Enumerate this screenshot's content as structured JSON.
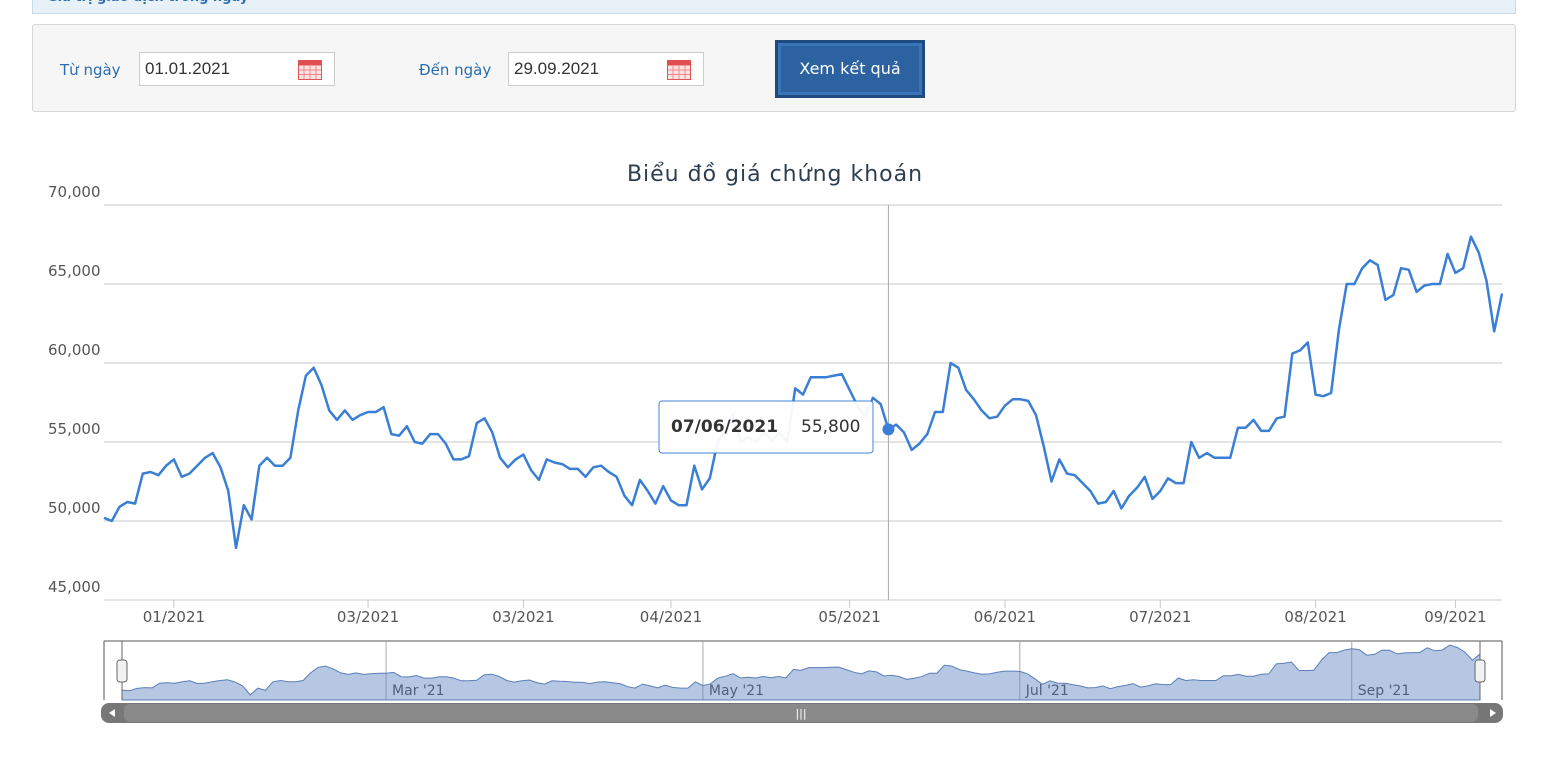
{
  "header": {
    "title": "Giá trị giao dịch trong ngày"
  },
  "form": {
    "from_label": "Từ ngày",
    "from_value": "01.01.2021",
    "to_label": "Đến ngày",
    "to_value": "29.09.2021",
    "button": "Xem kết quả"
  },
  "chart_data": {
    "type": "line",
    "title": "Biểu đồ giá chứng khoán",
    "color": "#3a7fd5",
    "values": [
      50200,
      50000,
      50900,
      51200,
      51100,
      53000,
      53100,
      52900,
      53500,
      53900,
      52800,
      53000,
      53500,
      54000,
      54300,
      53400,
      51900,
      48300,
      51000,
      50100,
      53500,
      54000,
      53500,
      53500,
      54000,
      57000,
      59200,
      59700,
      58600,
      57000,
      56400,
      57000,
      56400,
      56700,
      56900,
      56900,
      57200,
      55500,
      55400,
      56000,
      55000,
      54900,
      55500,
      55500,
      54900,
      53900,
      53900,
      54100,
      56200,
      56500,
      55600,
      54000,
      53400,
      53900,
      54200,
      53200,
      52600,
      53900,
      53700,
      53600,
      53300,
      53300,
      52800,
      53400,
      53500,
      53100,
      52800,
      51600,
      51000,
      52600,
      51900,
      51100,
      52200,
      51300,
      51000,
      51000,
      53500,
      52000,
      52700,
      55000,
      55700,
      56700,
      55000,
      55300,
      55000,
      55600,
      55100,
      55600,
      55000,
      58400,
      58000,
      59100,
      59100,
      59100,
      59200,
      59300,
      58300,
      57300,
      56600,
      57800,
      57400,
      55800,
      56100,
      55600,
      54500,
      54900,
      55500,
      56900,
      56900,
      60000,
      59700,
      58300,
      57700,
      57000,
      56500,
      56600,
      57300,
      57700,
      57700,
      57600,
      56700,
      54700,
      52500,
      53900,
      53000,
      52900,
      52400,
      51900,
      51100,
      51200,
      51900,
      50800,
      51600,
      52100,
      52800,
      51400,
      51900,
      52700,
      52400,
      52400,
      55000,
      54000,
      54300,
      54000,
      54000,
      54000,
      55900,
      55900,
      56400,
      55700,
      55700,
      56500,
      56600,
      60600,
      60800,
      61300,
      58000,
      57900,
      58100,
      62100,
      65000,
      65000,
      66000,
      66500,
      66200,
      64000,
      64300,
      66000,
      65900,
      64500,
      64900,
      65000,
      65000,
      66900,
      65700,
      66000,
      68000,
      67000,
      65200,
      62000,
      64400
    ],
    "xlim": [
      0,
      180
    ],
    "xticks": [
      {
        "value": 9,
        "label": "01/2021"
      },
      {
        "value": 34,
        "label": "03/2021"
      },
      {
        "value": 54,
        "label": "03/2021"
      },
      {
        "value": 73,
        "label": "04/2021"
      },
      {
        "value": 96,
        "label": "05/2021"
      },
      {
        "value": 116,
        "label": "06/2021"
      },
      {
        "value": 136,
        "label": "07/2021"
      },
      {
        "value": 156,
        "label": "08/2021"
      },
      {
        "value": 174,
        "label": "09/2021"
      }
    ],
    "ylim": [
      45000,
      70000
    ],
    "yticks": [
      {
        "value": 45000,
        "label": "45,000"
      },
      {
        "value": 50000,
        "label": "50,000"
      },
      {
        "value": 55000,
        "label": "55,000"
      },
      {
        "value": 60000,
        "label": "60,000"
      },
      {
        "value": 65000,
        "label": "65,000"
      },
      {
        "value": 70000,
        "label": "70,000"
      }
    ],
    "grid": true,
    "tooltip": {
      "x": 101,
      "date": "07/06/2021",
      "value": 55800,
      "value_label": "55,800"
    },
    "navigator_ticks": [
      {
        "value": 35,
        "label": "Mar '21"
      },
      {
        "value": 77,
        "label": "May '21"
      },
      {
        "value": 119,
        "label": "Jul '21"
      },
      {
        "value": 163,
        "label": "Sep '21"
      }
    ]
  }
}
